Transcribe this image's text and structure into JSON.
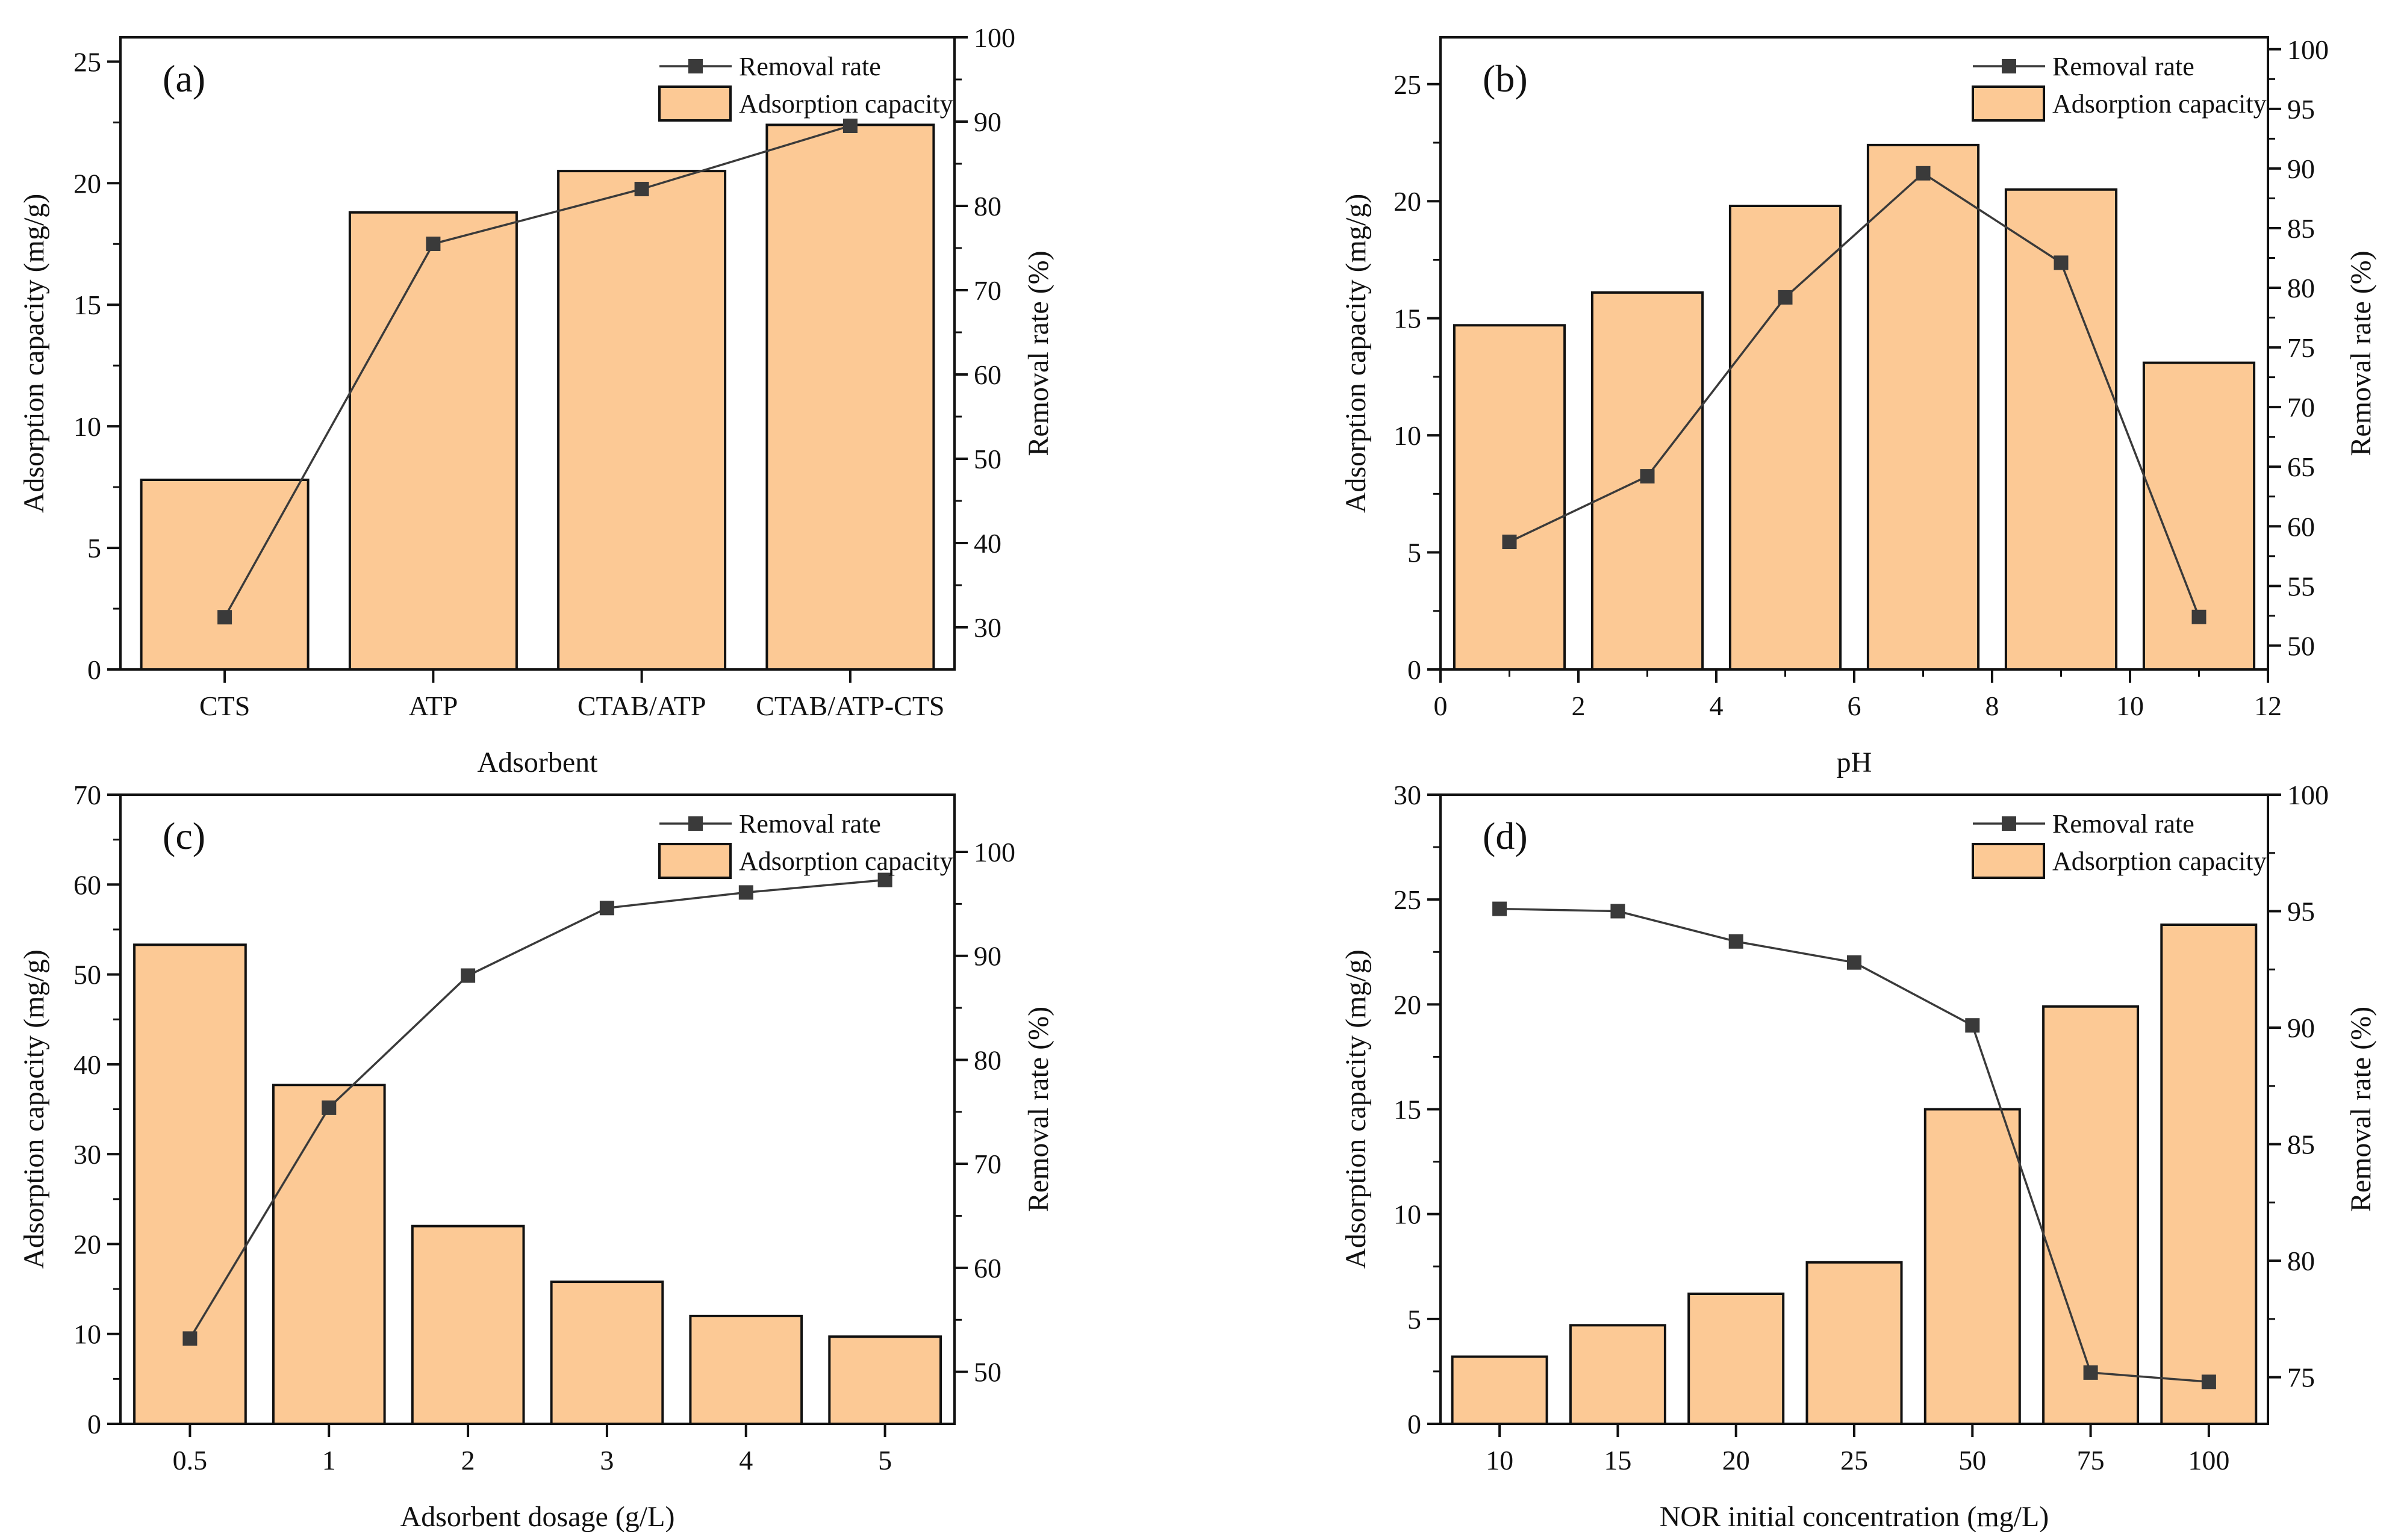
{
  "chart_data": [
    {
      "id": "a",
      "type": "bar+line",
      "panel_label": "(a)",
      "xlabel": "Adsorbent",
      "ylabel": "Adsorption capacity (mg/g)",
      "y2label": "Removal rate (%)",
      "x_scale": "categorical",
      "categories": [
        "CTS",
        "ATP",
        "CTAB/ATP",
        "CTAB/ATP-CTS"
      ],
      "ylim": [
        0,
        26
      ],
      "yticks": [
        0,
        5,
        10,
        15,
        20,
        25
      ],
      "y2lim": [
        25,
        100
      ],
      "y2ticks": [
        30,
        40,
        50,
        60,
        70,
        80,
        90,
        100
      ],
      "bars": {
        "name": "Adsorption capacity",
        "values": [
          7.8,
          18.8,
          20.5,
          22.4
        ]
      },
      "line": {
        "name": "Removal rate",
        "values": [
          31.2,
          75.5,
          82.0,
          89.5
        ]
      },
      "legend": [
        "Removal rate",
        "Adsorption capacity"
      ],
      "legend_position": "top-right"
    },
    {
      "id": "b",
      "type": "bar+line",
      "panel_label": "(b)",
      "xlabel": "pH",
      "ylabel": "Adsorption capacity (mg/g)",
      "y2label": "Removal rate (%)",
      "x_scale": "linear",
      "xlim": [
        0,
        12
      ],
      "xticks": [
        0,
        2,
        4,
        6,
        8,
        10,
        12
      ],
      "x": [
        1,
        3,
        5,
        7,
        9,
        11
      ],
      "bar_width": 1.6,
      "ylim": [
        0,
        27
      ],
      "yticks": [
        0,
        5,
        10,
        15,
        20,
        25
      ],
      "y2lim": [
        48,
        101
      ],
      "y2ticks": [
        50,
        55,
        60,
        65,
        70,
        75,
        80,
        85,
        90,
        95,
        100
      ],
      "bars": {
        "name": "Adsorption capacity",
        "values": [
          14.7,
          16.1,
          19.8,
          22.4,
          20.5,
          13.1
        ]
      },
      "line": {
        "name": "Removal rate",
        "values": [
          58.7,
          64.2,
          79.2,
          89.6,
          82.1,
          52.4
        ]
      },
      "legend": [
        "Removal rate",
        "Adsorption capacity"
      ],
      "legend_position": "top-right"
    },
    {
      "id": "c",
      "type": "bar+line",
      "panel_label": "(c)",
      "xlabel": "Adsorbent dosage (g/L)",
      "ylabel": "Adsorption capacity (mg/g)",
      "y2label": "Removal rate (%)",
      "x_scale": "categorical",
      "categories": [
        "0.5",
        "1",
        "2",
        "3",
        "4",
        "5"
      ],
      "ylim": [
        0,
        70
      ],
      "yticks": [
        0,
        10,
        20,
        30,
        40,
        50,
        60,
        70
      ],
      "y2lim": [
        45,
        105.5
      ],
      "y2ticks": [
        50,
        60,
        70,
        80,
        90,
        100
      ],
      "bars": {
        "name": "Adsorption capacity",
        "values": [
          53.3,
          37.7,
          22.0,
          15.8,
          12.0,
          9.7
        ]
      },
      "line": {
        "name": "Removal rate",
        "values": [
          53.2,
          75.4,
          88.1,
          94.6,
          96.1,
          97.3
        ]
      },
      "legend": [
        "Removal rate",
        "Adsorption capacity"
      ],
      "legend_position": "top-right"
    },
    {
      "id": "d",
      "type": "bar+line",
      "panel_label": "(d)",
      "xlabel": "NOR initial concentration (mg/L)",
      "ylabel": "Adsorption capacity (mg/g)",
      "y2label": "Removal rate (%)",
      "x_scale": "categorical",
      "categories": [
        "10",
        "15",
        "20",
        "25",
        "50",
        "75",
        "100"
      ],
      "ylim": [
        0,
        30
      ],
      "yticks": [
        0,
        5,
        10,
        15,
        20,
        25,
        30
      ],
      "y2lim": [
        73,
        100
      ],
      "y2ticks": [
        75,
        80,
        85,
        90,
        95,
        100
      ],
      "bars": {
        "name": "Adsorption capacity",
        "values": [
          3.2,
          4.7,
          6.2,
          7.7,
          15.0,
          19.9,
          23.8
        ]
      },
      "line": {
        "name": "Removal rate",
        "values": [
          95.1,
          95.0,
          93.7,
          92.8,
          90.1,
          75.2,
          74.8
        ]
      },
      "legend": [
        "Removal rate",
        "Adsorption capacity"
      ],
      "legend_position": "top-right"
    }
  ],
  "style": {
    "bar_fill": "#fcc995",
    "bar_stroke": "#111111",
    "line_color": "#3a3a3a",
    "marker_color": "#3a3a3a",
    "axis_color": "#111111"
  }
}
